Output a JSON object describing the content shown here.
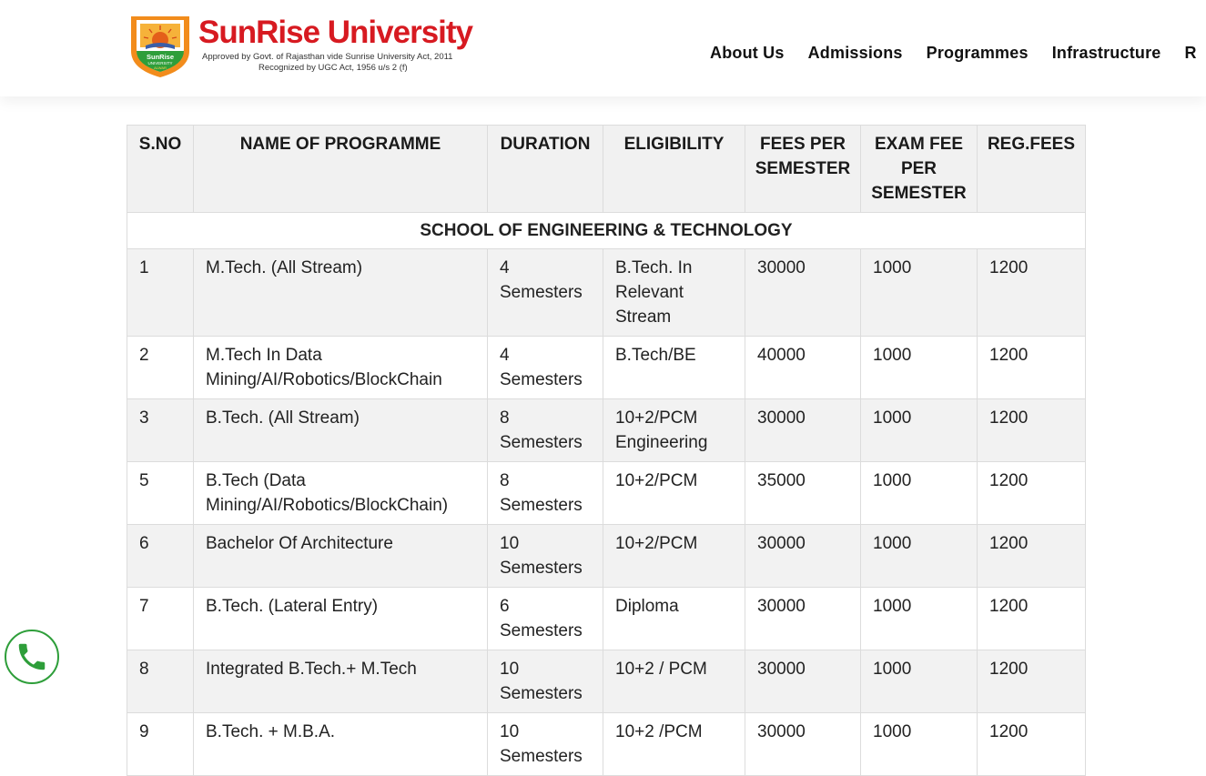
{
  "brand": {
    "name": "SunRise University",
    "line1": "Approved by Govt. of Rajasthan vide Sunrise University Act, 2011",
    "line2": "Recognized by UGC Act, 1956 u/s 2 (f)",
    "shield_text1": "SunRise",
    "shield_text2": "UNIVERSITY",
    "shield_text3": "ALWAR"
  },
  "nav": {
    "items": [
      "About Us",
      "Admissions",
      "Programmes",
      "Infrastructure",
      "R"
    ]
  },
  "table": {
    "headers": {
      "sno": "S.NO",
      "name": "NAME OF PROGRAMME",
      "duration": "DURATION",
      "eligibility": "ELIGIBILITY",
      "fees": "FEES PER SEMESTER",
      "exam": "EXAM FEE PER SEMESTER",
      "reg": "REG.FEES"
    },
    "section": "SCHOOL OF ENGINEERING & TECHNOLOGY",
    "rows": [
      {
        "sno": "1",
        "name": "M.Tech. (All Stream)",
        "duration": "4 Semesters",
        "eligibility": "B.Tech. In Relevant Stream",
        "fees": "30000",
        "exam": "1000",
        "reg": "1200"
      },
      {
        "sno": "2",
        "name": "M.Tech In Data Mining/AI/Robotics/BlockChain",
        "duration": "4 Semesters",
        "eligibility": "B.Tech/BE",
        "fees": "40000",
        "exam": "1000",
        "reg": "1200"
      },
      {
        "sno": "3",
        "name": "B.Tech. (All Stream)",
        "duration": "8 Semesters",
        "eligibility": "10+2/PCM Engineering",
        "fees": "30000",
        "exam": "1000",
        "reg": "1200"
      },
      {
        "sno": "5",
        "name": "B.Tech (Data Mining/AI/Robotics/BlockChain)",
        "duration": "8 Semesters",
        "eligibility": "10+2/PCM",
        "fees": "35000",
        "exam": "1000",
        "reg": "1200"
      },
      {
        "sno": "6",
        "name": "Bachelor Of Architecture",
        "duration": "10 Semesters",
        "eligibility": "10+2/PCM",
        "fees": "30000",
        "exam": "1000",
        "reg": "1200"
      },
      {
        "sno": "7",
        "name": "B.Tech. (Lateral Entry)",
        "duration": "6 Semesters",
        "eligibility": "Diploma",
        "fees": "30000",
        "exam": "1000",
        "reg": "1200"
      },
      {
        "sno": "8",
        "name": "Integrated B.Tech.+ M.Tech",
        "duration": "10 Semesters",
        "eligibility": "10+2 / PCM",
        "fees": "30000",
        "exam": "1000",
        "reg": "1200"
      },
      {
        "sno": "9",
        "name": "B.Tech. + M.B.A.",
        "duration": "10 Semesters",
        "eligibility": "10+2 /PCM",
        "fees": "30000",
        "exam": "1000",
        "reg": "1200"
      }
    ]
  },
  "colors": {
    "brand_red": "#d71a21",
    "phone_green": "#2e9e3a",
    "header_bg": "#f1f1f1",
    "row_alt_bg": "#f2f2f2"
  },
  "icons": {
    "logo": "university-shield-icon",
    "call": "phone-icon"
  }
}
